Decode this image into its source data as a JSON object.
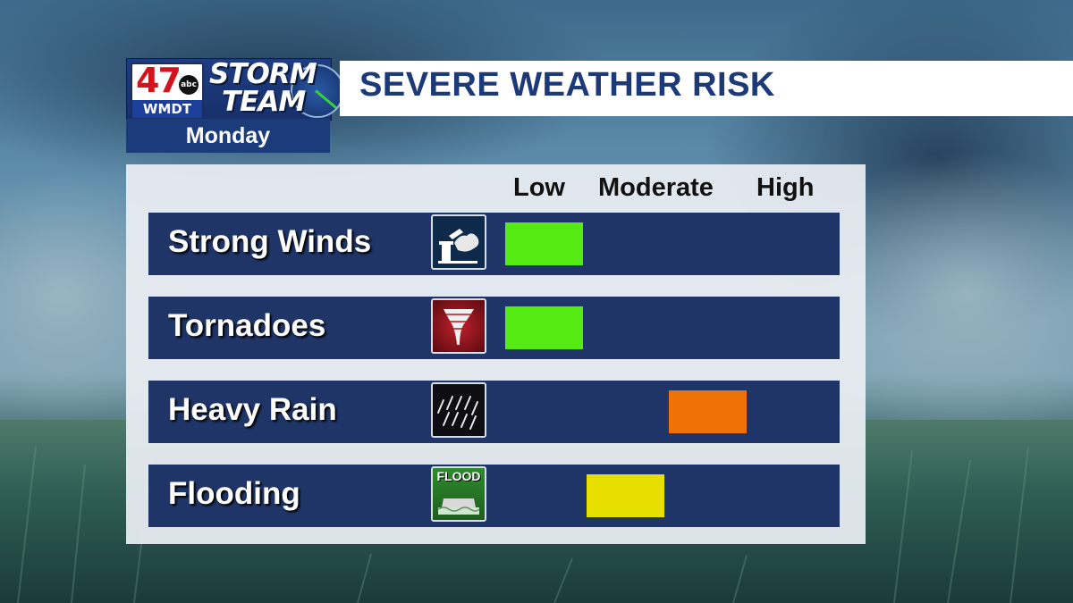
{
  "logo": {
    "station_number": "47",
    "network": "abc",
    "call_sign": "WMDT",
    "brand_line1": "STORM",
    "brand_line2": "TEAM",
    "day": "Monday"
  },
  "title": "SEVERE WEATHER RISK",
  "levels": [
    "Low",
    "Moderate",
    "High"
  ],
  "rows": [
    {
      "label": "Strong Winds",
      "icon": "strong-wind-icon",
      "risk": "Low",
      "risk_color": "#55ea12"
    },
    {
      "label": "Tornadoes",
      "icon": "tornado-icon",
      "risk": "Low",
      "risk_color": "#55ea12"
    },
    {
      "label": "Heavy Rain",
      "icon": "heavy-rain-icon",
      "risk": "Moderate-High",
      "risk_color": "#ee7206"
    },
    {
      "label": "Flooding",
      "icon": "flood-icon",
      "icon_text": "FLOOD",
      "risk": "Low-Moderate",
      "risk_color": "#e6df00"
    }
  ],
  "colors": {
    "row_bg": "#1f3568",
    "title_text": "#1c3978",
    "low": "#55ea12",
    "low_moderate": "#e6df00",
    "moderate_high": "#ee7206"
  }
}
